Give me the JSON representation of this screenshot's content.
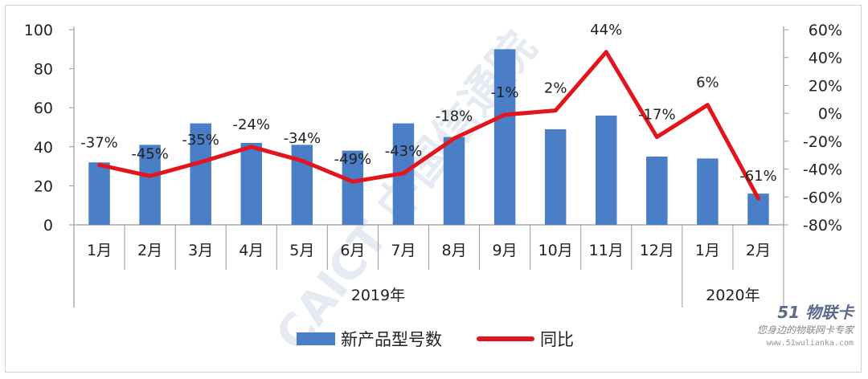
{
  "chart_data": {
    "type": "bar",
    "categories": [
      "1月",
      "2月",
      "3月",
      "4月",
      "5月",
      "6月",
      "7月",
      "8月",
      "9月",
      "10月",
      "11月",
      "12月",
      "1月",
      "2月"
    ],
    "groups": [
      {
        "label": "2019年",
        "span": 12
      },
      {
        "label": "2020年",
        "span": 2
      }
    ],
    "series": [
      {
        "name": "新产品型号数",
        "type": "bar",
        "axis": "left",
        "color": "#4a7fc8",
        "values": [
          32,
          41,
          52,
          42,
          41,
          38,
          52,
          45,
          90,
          49,
          56,
          35,
          34,
          16
        ]
      },
      {
        "name": "同比",
        "type": "line",
        "axis": "right",
        "color": "#e3141c",
        "values": [
          -37,
          -45,
          -35,
          -24,
          -34,
          -49,
          -43,
          -18,
          -1,
          2,
          44,
          -17,
          6,
          -61
        ],
        "labels": [
          "-37%",
          "-45%",
          "-35%",
          "-24%",
          "-34%",
          "-49%",
          "-43%",
          "-18%",
          "-1%",
          "2%",
          "44%",
          "-17%",
          "6%",
          "-61%"
        ]
      }
    ],
    "y_left": {
      "min": 0,
      "max": 100,
      "ticks": [
        "0",
        "20",
        "40",
        "60",
        "80",
        "100"
      ]
    },
    "y_right": {
      "min": -80,
      "max": 60,
      "ticks": [
        "-80%",
        "-60%",
        "-40%",
        "-20%",
        "0%",
        "20%",
        "40%",
        "60%"
      ]
    },
    "legend_position": "bottom",
    "grid": false
  },
  "watermark": {
    "text": "CAICT 中国信通院"
  },
  "logo": {
    "brand": "51 物联卡",
    "tagline": "您身边的物联网卡专家",
    "url": "www.51wulianka.com"
  }
}
